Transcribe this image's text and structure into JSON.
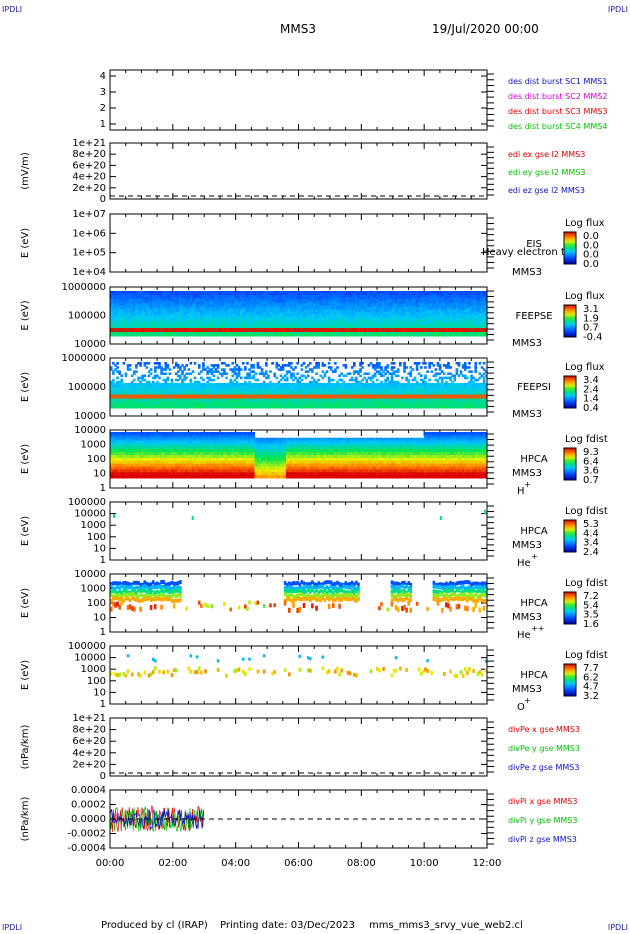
{
  "corners": {
    "top_left": "IPDLI",
    "top_right": "IPDLI",
    "bottom_left": "IPDLI",
    "bottom_right": "IPDLI"
  },
  "header": {
    "spacecraft": "MMS3",
    "datetime": "19/Jul/2020 00:00"
  },
  "footer": {
    "produced_by": "Produced by cl (IRAP)",
    "printing_date": "Printing date: 03/Dec/2023",
    "script": "mms_mms3_srvy_vue_web2.cl"
  },
  "colors": {
    "red": "#e00000",
    "magenta": "#d000d0",
    "green": "#00c000",
    "blue": "#1010c0",
    "dark_red": "#a00000"
  },
  "chart_data": [
    {
      "type": "line",
      "panel": "burst",
      "ylim": [
        0.5,
        4.5
      ],
      "yticks": [
        "4",
        "3",
        "2",
        "1"
      ],
      "ylabel": "",
      "legend": [
        {
          "name": "des dist burst SC1 MMS1",
          "color": "#1010c0"
        },
        {
          "name": "des dist burst SC2 MMS2",
          "color": "#d000d0"
        },
        {
          "name": "des dist burst SC3 MMS3",
          "color": "#e00000"
        },
        {
          "name": "des dist burst SC4 MMS4",
          "color": "#00c000"
        }
      ]
    },
    {
      "type": "line",
      "panel": "edi",
      "yticks": [
        "1e+21",
        "8e+20",
        "6e+20",
        "4e+20",
        "2e+20",
        "0"
      ],
      "ylabel": "(mV/m)",
      "legend": [
        {
          "name": "edi ex gse l2 MMS3",
          "color": "#e00000"
        },
        {
          "name": "edi ey gse l2 MMS3",
          "color": "#00c000"
        },
        {
          "name": "edi ez gse l2 MMS3",
          "color": "#1010c0"
        }
      ]
    },
    {
      "type": "heatmap",
      "panel": "eis",
      "ylabel": "E (eV)",
      "yticks": [
        "1e+07",
        "1e+06",
        "1e+05",
        "1e+04"
      ],
      "instrument": "EIS",
      "sublabel": "MMS3",
      "overlay": "Heavy electron tof",
      "colorbar_title": "Log flux",
      "colorbar_ticks": [
        "0.0",
        "0.0",
        "0.0",
        "0.0"
      ]
    },
    {
      "type": "heatmap",
      "panel": "feeps_e",
      "ylabel": "E (eV)",
      "yticks": [
        "1000000",
        "100000",
        "10000"
      ],
      "instrument": "FEEPSE",
      "sublabel": "MMS3",
      "colorbar_title": "Log flux",
      "colorbar_ticks": [
        "3.1",
        "1.9",
        "0.7",
        "-0.4"
      ]
    },
    {
      "type": "heatmap",
      "panel": "feeps_i",
      "ylabel": "E (eV)",
      "yticks": [
        "1000000",
        "100000",
        "10000"
      ],
      "instrument": "FEEPSI",
      "sublabel": "MMS3",
      "colorbar_title": "Log flux",
      "colorbar_ticks": [
        "3.4",
        "2.4",
        "1.4",
        "0.4"
      ]
    },
    {
      "type": "heatmap",
      "panel": "hpca_h",
      "ylabel": "E (eV)",
      "yticks": [
        "10000",
        "1000",
        "100",
        "10",
        "1"
      ],
      "instrument": "HPCA",
      "sublabel": "MMS3",
      "species": "H",
      "charge": "+",
      "colorbar_title": "Log fdist",
      "colorbar_ticks": [
        "9.3",
        "6.4",
        "3.6",
        "0.7"
      ]
    },
    {
      "type": "heatmap",
      "panel": "hpca_he",
      "ylabel": "E (eV)",
      "yticks": [
        "100000",
        "10000",
        "1000",
        "100",
        "10",
        "1"
      ],
      "instrument": "HPCA",
      "sublabel": "MMS3",
      "species": "He",
      "charge": "+",
      "colorbar_title": "Log fdist",
      "colorbar_ticks": [
        "5.3",
        "4.4",
        "3.4",
        "2.4"
      ]
    },
    {
      "type": "heatmap",
      "panel": "hpca_hepp",
      "ylabel": "E (eV)",
      "yticks": [
        "10000",
        "1000",
        "100",
        "10",
        "1"
      ],
      "instrument": "HPCA",
      "sublabel": "MMS3",
      "species": "He",
      "charge": "++",
      "colorbar_title": "Log fdist",
      "colorbar_ticks": [
        "7.2",
        "5.4",
        "3.5",
        "1.6"
      ]
    },
    {
      "type": "heatmap",
      "panel": "hpca_o",
      "ylabel": "E (eV)",
      "yticks": [
        "100000",
        "10000",
        "1000",
        "100",
        "10",
        "1"
      ],
      "instrument": "HPCA",
      "sublabel": "MMS3",
      "species": "O",
      "charge": "+",
      "colorbar_title": "Log fdist",
      "colorbar_ticks": [
        "7.7",
        "6.2",
        "4.7",
        "3.2"
      ]
    },
    {
      "type": "line",
      "panel": "divpe",
      "yticks": [
        "1e+21",
        "8e+20",
        "6e+20",
        "4e+20",
        "2e+20",
        "0"
      ],
      "ylabel": "(nPa/km)",
      "legend": [
        {
          "name": "divPe x gse MMS3",
          "color": "#e00000"
        },
        {
          "name": "divPe y gse MMS3",
          "color": "#00c000"
        },
        {
          "name": "divPe z gse MMS3",
          "color": "#1010c0"
        }
      ]
    },
    {
      "type": "line",
      "panel": "divpi",
      "yticks": [
        "0.0004",
        "0.0002",
        "0.0000",
        "-0.0002",
        "-0.0004"
      ],
      "ylabel": "(nPa/km)",
      "ylim": [
        -0.0005,
        0.0005
      ],
      "data_end_hour": 3.0,
      "legend": [
        {
          "name": "divPi x gse MMS3",
          "color": "#e00000"
        },
        {
          "name": "divPi y gse MMS3",
          "color": "#00c000"
        },
        {
          "name": "divPi z gse MMS3",
          "color": "#1010c0"
        }
      ]
    }
  ],
  "x_axis": {
    "ticks": [
      "00:00",
      "02:00",
      "04:00",
      "06:00",
      "08:00",
      "10:00",
      "12:00"
    ],
    "range_hours": [
      0,
      12
    ]
  }
}
